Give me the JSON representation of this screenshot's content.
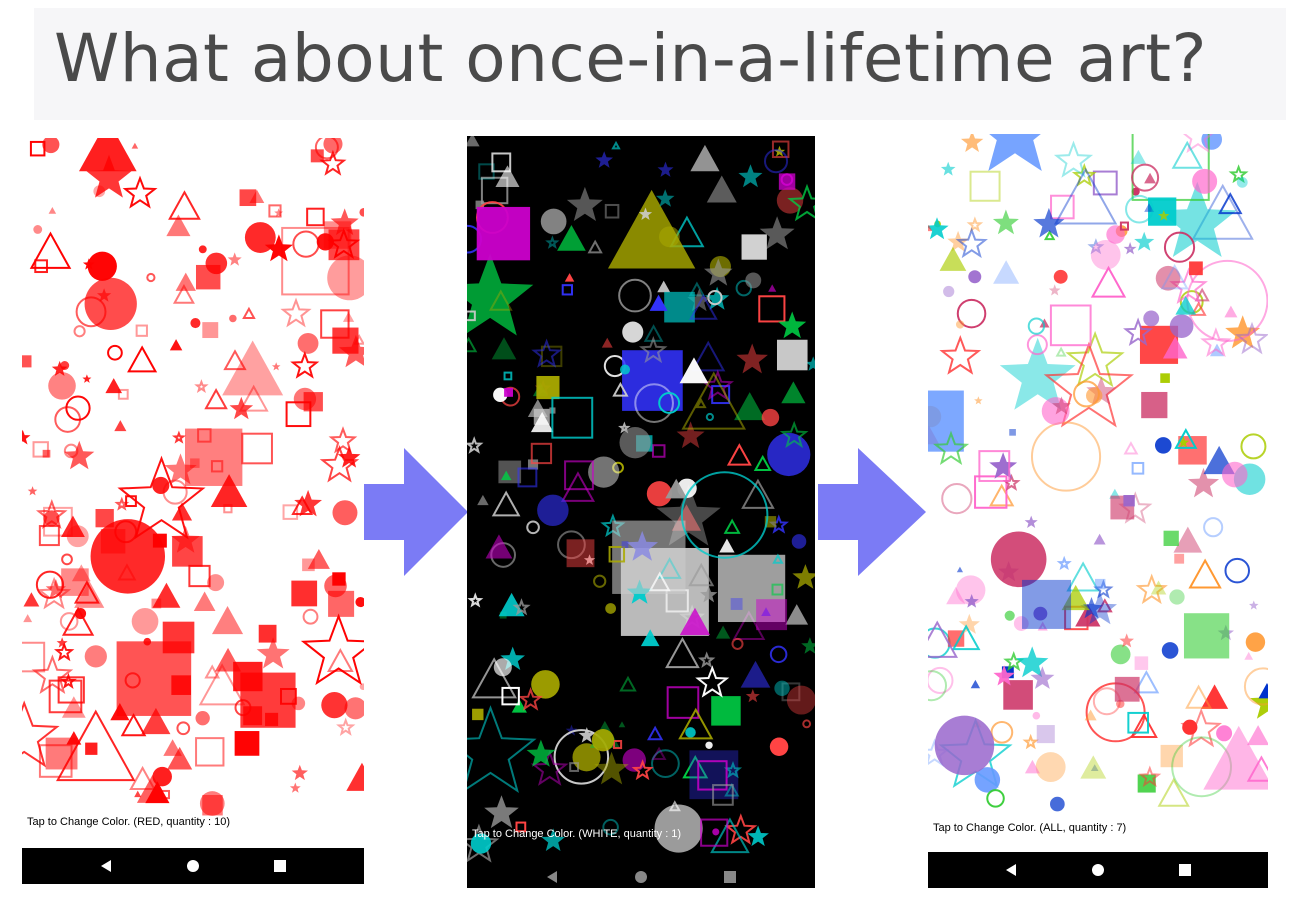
{
  "headline": "What about once-in-a-lifetime art?",
  "screens": [
    {
      "caption": "Tap to Change Color.  (RED, quantity : 10)",
      "background": "#ffffff",
      "caption_color": "#000000",
      "palette": [
        "#ff0000"
      ]
    },
    {
      "caption": "Tap to Change Color.  (WHITE, quantity : 1)",
      "background": "#000000",
      "caption_color": "#ffffff",
      "palette": [
        "#ffffff",
        "#cccccc",
        "#999999",
        "#00cccc",
        "#cc00cc",
        "#ff4444",
        "#00cc44",
        "#3333ff",
        "#aaaa00"
      ]
    },
    {
      "caption": "Tap to Change Color.  (ALL, quantity : 7)",
      "background": "#ffffff",
      "caption_color": "#000000",
      "palette": [
        "#6699ff",
        "#ff66cc",
        "#33cc33",
        "#ff9933",
        "#9966cc",
        "#00cccc",
        "#cc3366",
        "#aacc00",
        "#0033cc",
        "#ff3333"
      ]
    }
  ],
  "nav_icons": [
    "back-icon",
    "home-icon",
    "recents-icon"
  ],
  "colors": {
    "arrow": "#7b7bf5",
    "title_band": "#f6f6f8",
    "title_text": "#4a4a4a"
  }
}
